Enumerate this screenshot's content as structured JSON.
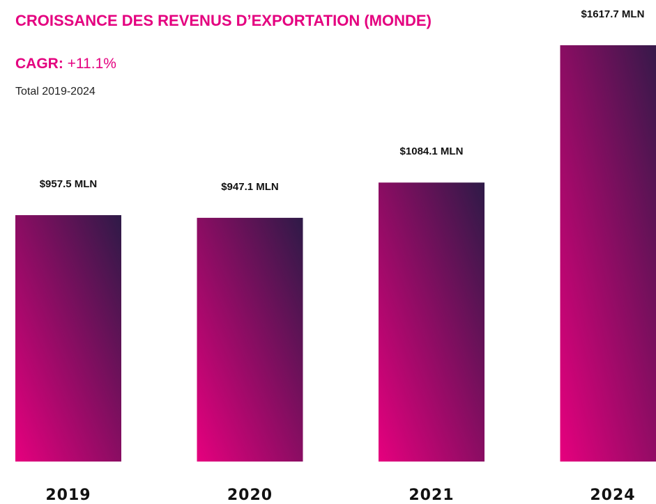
{
  "chart_data": {
    "type": "bar",
    "title": "CROISSANCE DES REVENUS D’EXPORTATION (MONDE)",
    "cagr_label": "CAGR:",
    "cagr_value": "+11.1%",
    "subtitle": "Total  2019-2024",
    "categories": [
      "2019",
      "2020",
      "2021",
      "2024"
    ],
    "values": [
      957.5,
      947.1,
      1084.1,
      1617.7
    ],
    "value_labels": [
      "$957.5 MLN",
      "$947.1 MLN",
      "$1084.1 MLN",
      "$1617.7 MLN"
    ],
    "gradient": [
      "#e6007e",
      "#2e1a47"
    ]
  }
}
